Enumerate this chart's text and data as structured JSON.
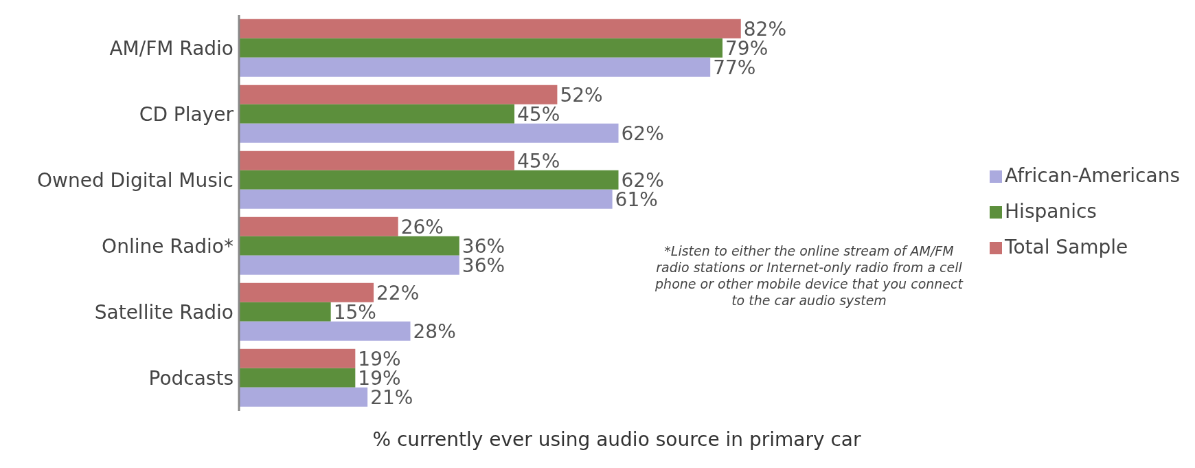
{
  "chart_data": {
    "type": "bar",
    "orientation": "horizontal",
    "xlabel": "% currently ever using audio source in primary car",
    "categories": [
      "AM/FM Radio",
      "CD Player",
      "Owned Digital Music",
      "Online Radio*",
      "Satellite Radio",
      "Podcasts"
    ],
    "series": [
      {
        "name": "Total Sample",
        "color": "#c87070",
        "values": [
          82,
          52,
          45,
          26,
          22,
          19
        ],
        "value_labels": [
          "82%",
          "52%",
          "45%",
          "26%",
          "22%",
          "19%"
        ]
      },
      {
        "name": "Hispanics",
        "color": "#5c8f3c",
        "values": [
          79,
          45,
          62,
          36,
          15,
          19
        ],
        "value_labels": [
          "79%",
          "45%",
          "62%",
          "36%",
          "15%",
          "19%"
        ]
      },
      {
        "name": "African-Americans",
        "color": "#abaade",
        "values": [
          77,
          62,
          61,
          36,
          28,
          21
        ],
        "value_labels": [
          "77%",
          "62%",
          "61%",
          "36%",
          "28%",
          "21%"
        ]
      }
    ],
    "legend": "right",
    "grid": false,
    "annotations": [
      "*Listen to either the online stream of AM/FM radio stations or Internet-only radio from a cell phone or other mobile device that you connect to the car audio system"
    ]
  }
}
